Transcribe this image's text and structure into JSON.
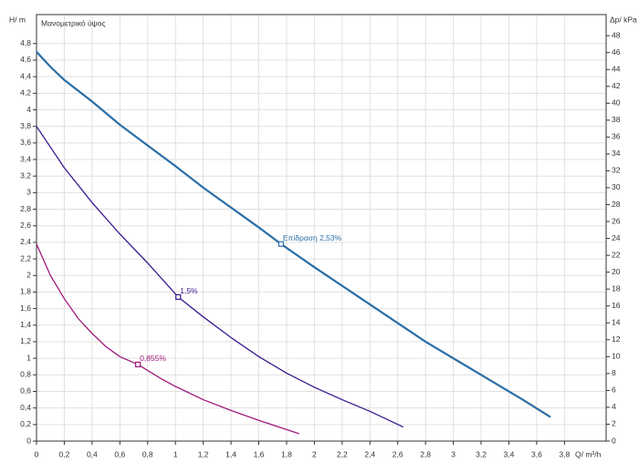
{
  "chart_data": {
    "type": "line",
    "title": "Μανομετρικό ύψος",
    "y_label": "H/ m",
    "y2_label": "Δp/ kPa",
    "x_label": "Q/ m³/h",
    "xlim": [
      0,
      4.1
    ],
    "ylim": [
      0,
      5.15
    ],
    "y2lim": [
      0,
      50.5
    ],
    "grid": true,
    "xticks": [
      0,
      {
        "value": 0.2,
        "label": "0,2"
      },
      {
        "value": 0.4,
        "label": "0,4"
      },
      {
        "value": 0.6,
        "label": "0,6"
      },
      {
        "value": 0.8,
        "label": "0,8"
      },
      1,
      {
        "value": 1.2,
        "label": "1,2"
      },
      {
        "value": 1.4,
        "label": "1,4"
      },
      {
        "value": 1.6,
        "label": "1,6"
      },
      {
        "value": 1.8,
        "label": "1,8"
      },
      2,
      {
        "value": 2.2,
        "label": "2,2"
      },
      {
        "value": 2.4,
        "label": "2,4"
      },
      {
        "value": 2.6,
        "label": "2,6"
      },
      {
        "value": 2.8,
        "label": "2,8"
      },
      3,
      {
        "value": 3.2,
        "label": "3,2"
      },
      {
        "value": 3.4,
        "label": "3,4"
      },
      {
        "value": 3.6,
        "label": "3,6"
      },
      {
        "value": 3.8,
        "label": "3,8"
      }
    ],
    "yticks": [
      0,
      {
        "value": 0.2,
        "label": "0,2"
      },
      {
        "value": 0.4,
        "label": "0,4"
      },
      {
        "value": 0.6,
        "label": "0,6"
      },
      {
        "value": 0.8,
        "label": "0,8"
      },
      1,
      {
        "value": 1.2,
        "label": "1,2"
      },
      {
        "value": 1.4,
        "label": "1,4"
      },
      {
        "value": 1.6,
        "label": "1,6"
      },
      {
        "value": 1.8,
        "label": "1,8"
      },
      2,
      {
        "value": 2.2,
        "label": "2,2"
      },
      {
        "value": 2.4,
        "label": "2,4"
      },
      {
        "value": 2.6,
        "label": "2,6"
      },
      {
        "value": 2.8,
        "label": "2,8"
      },
      3,
      {
        "value": 3.2,
        "label": "3,2"
      },
      {
        "value": 3.4,
        "label": "3,4"
      },
      {
        "value": 3.6,
        "label": "3,6"
      },
      {
        "value": 3.8,
        "label": "3,8"
      },
      4,
      {
        "value": 4.2,
        "label": "4,2"
      },
      {
        "value": 4.4,
        "label": "4,4"
      },
      {
        "value": 4.6,
        "label": "4,6"
      },
      {
        "value": 4.8,
        "label": "4,8"
      }
    ],
    "y2ticks": [
      0,
      2,
      4,
      6,
      8,
      10,
      12,
      14,
      16,
      18,
      20,
      22,
      24,
      26,
      28,
      30,
      32,
      34,
      36,
      38,
      40,
      42,
      44,
      46,
      48
    ],
    "series": [
      {
        "color": "#2a6ea6",
        "width": 2.2,
        "x": [
          0,
          0.1,
          0.2,
          0.4,
          0.6,
          0.8,
          1.0,
          1.2,
          1.4,
          1.6,
          1.76,
          2.0,
          2.4,
          2.8,
          3.2,
          3.5,
          3.7
        ],
        "values": [
          4.7,
          4.52,
          4.36,
          4.1,
          3.82,
          3.57,
          3.32,
          3.06,
          2.82,
          2.58,
          2.38,
          2.1,
          1.65,
          1.2,
          0.8,
          0.5,
          0.29
        ]
      },
      {
        "color": "#3a1890",
        "width": 1.3,
        "x": [
          0,
          0.2,
          0.4,
          0.6,
          0.8,
          1.02,
          1.2,
          1.4,
          1.6,
          1.8,
          2.0,
          2.2,
          2.4,
          2.64
        ],
        "values": [
          3.8,
          3.3,
          2.88,
          2.5,
          2.15,
          1.74,
          1.5,
          1.25,
          1.02,
          0.82,
          0.65,
          0.5,
          0.36,
          0.17
        ]
      },
      {
        "color": "#a0187c",
        "width": 1.3,
        "x": [
          0,
          0.1,
          0.2,
          0.3,
          0.4,
          0.5,
          0.6,
          0.73,
          0.9,
          1.0,
          1.2,
          1.4,
          1.6,
          1.89
        ],
        "values": [
          2.38,
          2.0,
          1.72,
          1.48,
          1.3,
          1.14,
          1.02,
          0.925,
          0.75,
          0.66,
          0.5,
          0.37,
          0.25,
          0.09
        ]
      }
    ],
    "annotations": [
      {
        "text": "Επίδραση 2,53%",
        "x": 1.76,
        "y": 2.38,
        "color": "#2a6ea6"
      },
      {
        "text": "1,5%",
        "x": 1.02,
        "y": 1.74,
        "color": "#3a1890"
      },
      {
        "text": "0,855%",
        "x": 0.73,
        "y": 0.925,
        "color": "#a0187c"
      }
    ]
  }
}
